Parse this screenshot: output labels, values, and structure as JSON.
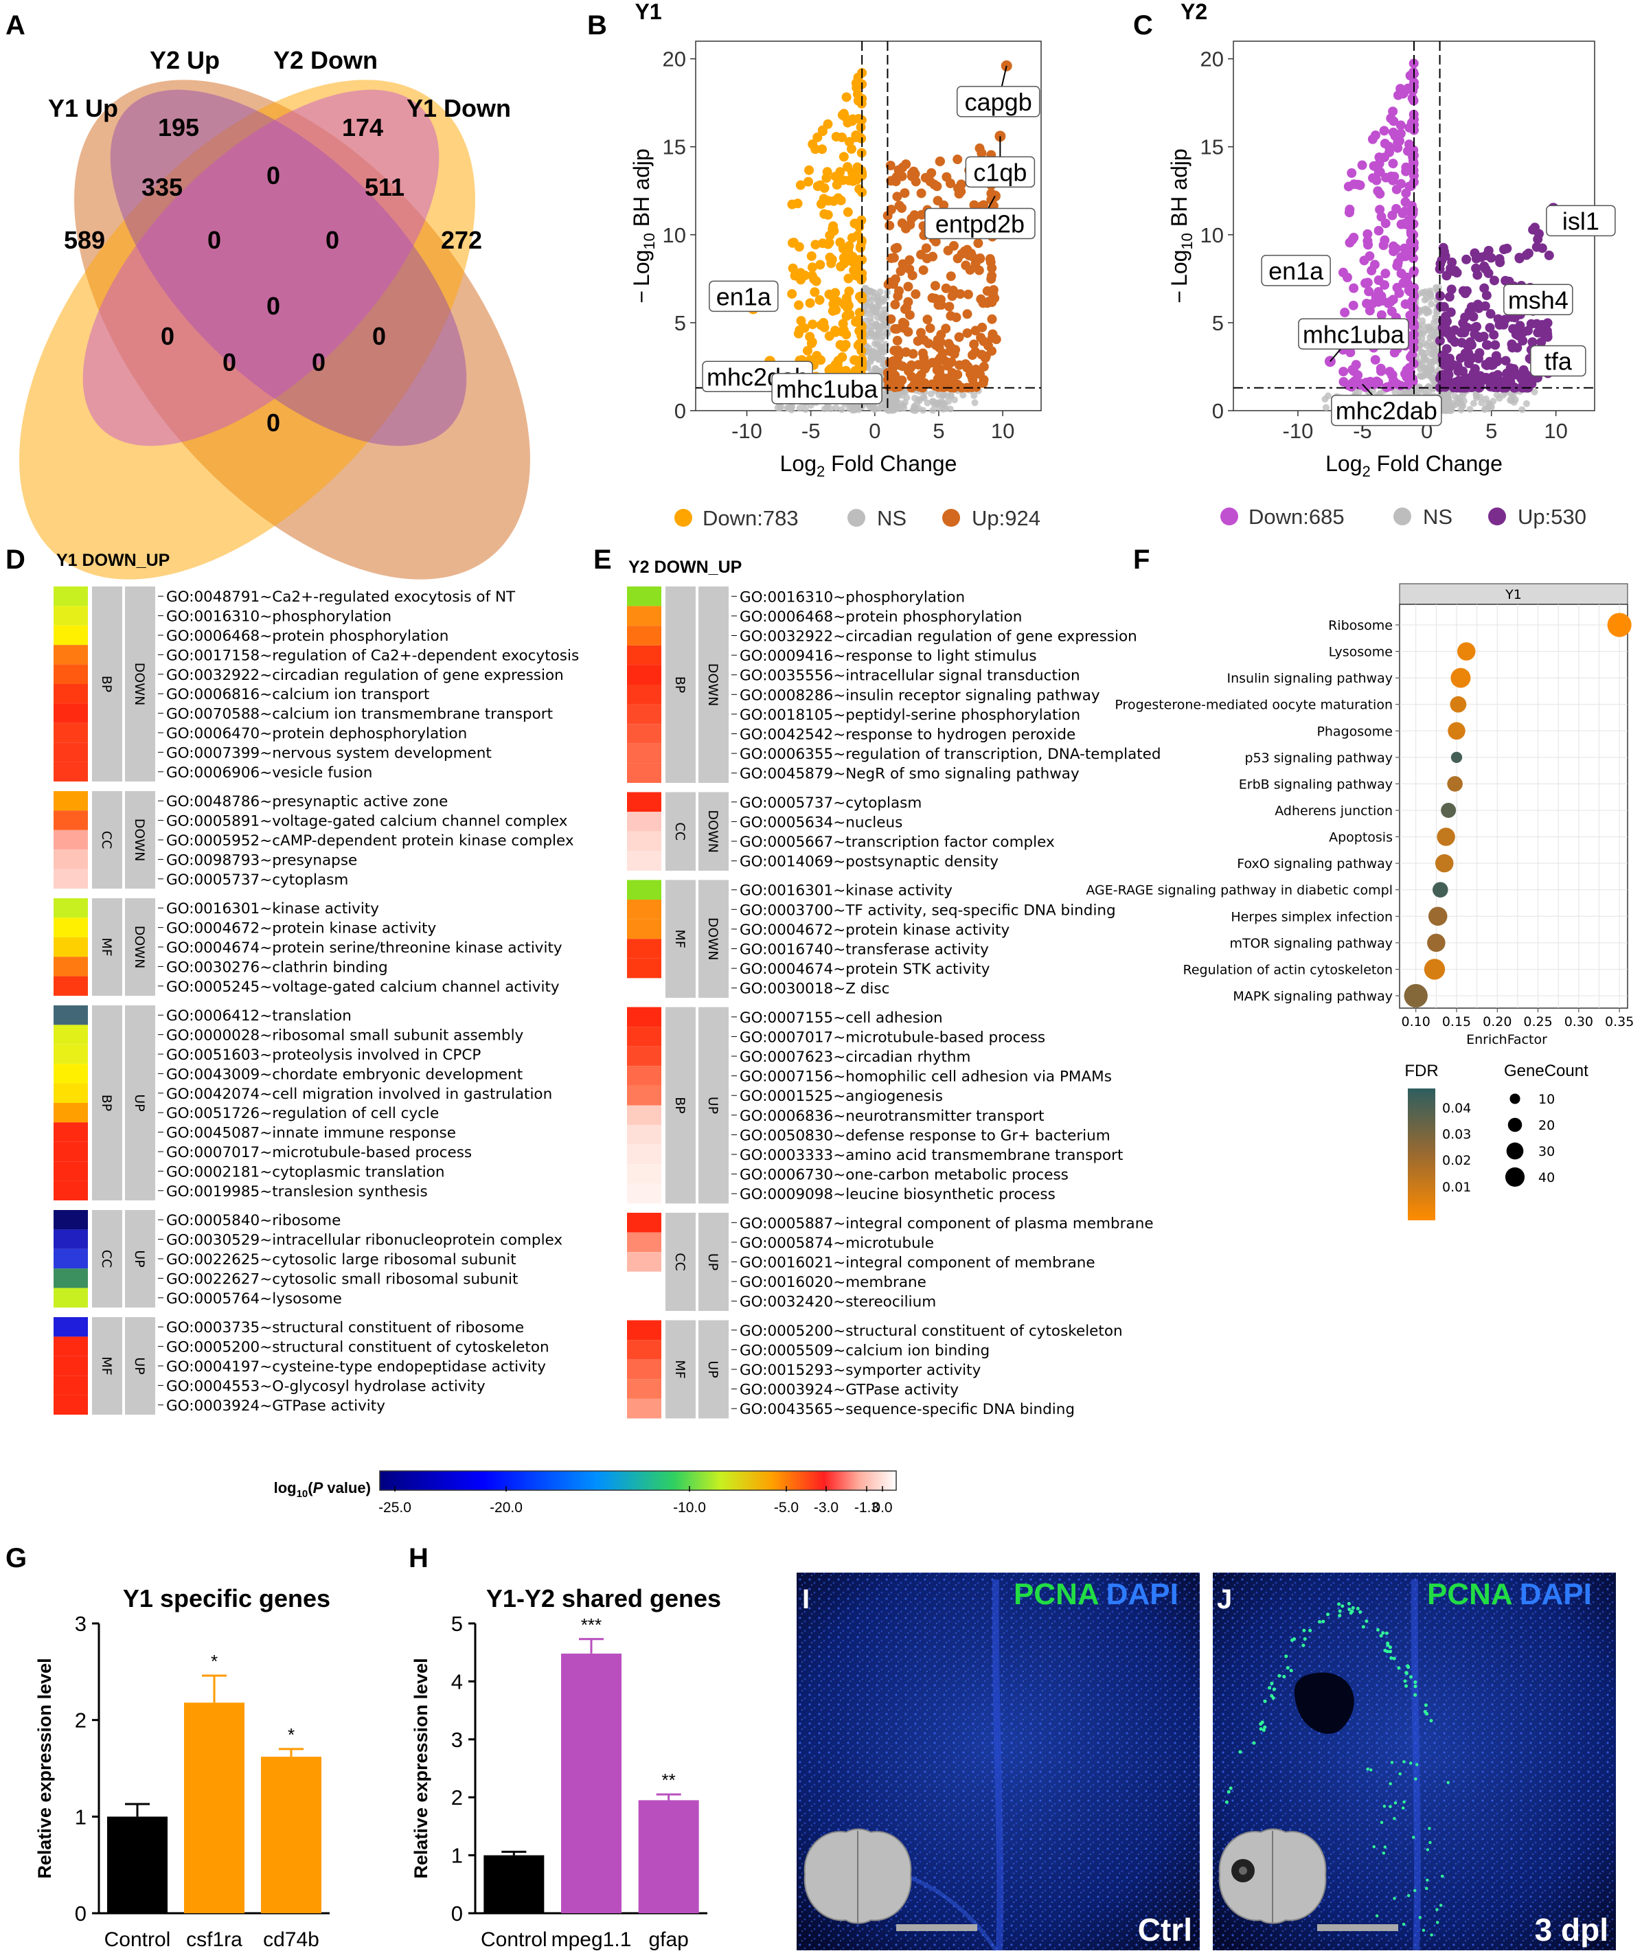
{
  "panels": {
    "A": "A",
    "B": "B",
    "C": "C",
    "D": "D",
    "E": "E",
    "F": "F",
    "G": "G",
    "H": "H",
    "I": "I",
    "J": "J"
  },
  "colors": {
    "y1_up": "#D2691E",
    "y1_down": "#FFA500",
    "y2_up": "#7B2D8E",
    "y2_down": "#C050D0",
    "ns": "#BDBDBD",
    "bar_control": "#000000",
    "bar_y1": "#FF9A00",
    "bar_y2": "#B94FBF"
  },
  "chart_data": [
    {
      "id": "A",
      "type": "venn",
      "sets": [
        "Y1 Up",
        "Y2 Up",
        "Y2 Down",
        "Y1 Down"
      ],
      "counts": {
        "y1up_only": "589",
        "y2up_only": "195",
        "y2down_only": "174",
        "y1down_only": "272",
        "y1up_y2up": "335",
        "y2down_y1down": "511",
        "y2up_y2down": "0",
        "y1up_y2down": "0",
        "y2up_y1down": "0",
        "center": "0",
        "r1": "0",
        "r2": "0",
        "r3": "0",
        "r4": "0",
        "y1up_y1down": "0"
      }
    },
    {
      "id": "B",
      "type": "scatter",
      "title": "Y1",
      "xlabel": "Log2 Fold Change",
      "ylabel": "-Log10 BH adjp",
      "xlim": [
        -14,
        13
      ],
      "ylim": [
        0,
        21
      ],
      "xticks": [
        "-10",
        "-5",
        "0",
        "5",
        "10"
      ],
      "yticks": [
        "0",
        "5",
        "10",
        "15",
        "20"
      ],
      "legend": {
        "down": "Down:783",
        "ns": "NS",
        "up": "Up:924"
      },
      "labeled_genes": [
        {
          "gene": "capgb",
          "x": 10.3,
          "y": 19.6
        },
        {
          "gene": "c1qb",
          "x": 9.8,
          "y": 15.6
        },
        {
          "gene": "entpd2b",
          "x": 9.4,
          "y": 12.2
        },
        {
          "gene": "en1a",
          "x": -9.5,
          "y": 5.8
        },
        {
          "gene": "mhc2dab",
          "x": -8.2,
          "y": 2.8
        },
        {
          "gene": "mhc1uba",
          "x": -7.5,
          "y": 1.8
        }
      ]
    },
    {
      "id": "C",
      "type": "scatter",
      "title": "Y2",
      "xlabel": "Log2 Fold Change",
      "ylabel": "-Log10 BH adjp",
      "xlim": [
        -15,
        13
      ],
      "ylim": [
        0,
        21
      ],
      "xticks": [
        "-10",
        "-5",
        "0",
        "5",
        "10"
      ],
      "yticks": [
        "0",
        "5",
        "10",
        "15",
        "20"
      ],
      "legend": {
        "down": "Down:685",
        "ns": "NS",
        "up": "Up:530"
      },
      "labeled_genes": [
        {
          "gene": "isl1",
          "x": 9.8,
          "y": 11.5
        },
        {
          "gene": "msh4",
          "x": 8.2,
          "y": 6.0
        },
        {
          "gene": "tfa",
          "x": 9.0,
          "y": 3.3
        },
        {
          "gene": "en1a",
          "x": -11.0,
          "y": 7.5
        },
        {
          "gene": "mhc1uba",
          "x": -7.5,
          "y": 2.8
        },
        {
          "gene": "mhc2dab",
          "x": -5.0,
          "y": 1.5
        }
      ]
    },
    {
      "id": "D",
      "type": "heatmap",
      "title": "Y1 DOWN_UP",
      "groups": [
        {
          "cat": "BP",
          "dir": "DOWN",
          "terms": [
            "GO:0048791~Ca2+-regulated exocytosis of NT",
            "GO:0016310~phosphorylation",
            "GO:0006468~protein phosphorylation",
            "GO:0017158~regulation of Ca2+-dependent exocytosis",
            "GO:0032922~circadian regulation of gene expression",
            "GO:0006816~calcium ion transport",
            "GO:0070588~calcium ion transmembrane transport",
            "GO:0006470~protein dephosphorylation",
            "GO:0007399~nervous system development",
            "GO:0006906~vesicle fusion"
          ],
          "colors": [
            "#C8F020",
            "#E6F018",
            "#FFF000",
            "#FF7A10",
            "#FF5A10",
            "#FF3A10",
            "#FF2A10",
            "#FF3E18",
            "#FF3A18",
            "#FF3A18"
          ]
        },
        {
          "cat": "CC",
          "dir": "DOWN",
          "terms": [
            "GO:0048786~presynaptic active zone",
            "GO:0005891~voltage-gated calcium channel complex",
            "GO:0005952~cAMP-dependent protein kinase complex",
            "GO:0098793~presynapse",
            "GO:0005737~cytoplasm"
          ],
          "colors": [
            "#FFA000",
            "#FF6020",
            "#FFA89A",
            "#FFC4B8",
            "#FFD0C8"
          ]
        },
        {
          "cat": "MF",
          "dir": "DOWN",
          "terms": [
            "GO:0016301~kinase activity",
            "GO:0004672~protein kinase activity",
            "GO:0004674~protein serine/threonine kinase activity",
            "GO:0030276~clathrin binding",
            "GO:0005245~voltage-gated calcium channel activity"
          ],
          "colors": [
            "#C8F020",
            "#FFF000",
            "#FFD000",
            "#FF7A10",
            "#FF3A10"
          ]
        },
        {
          "cat": "BP",
          "dir": "UP",
          "terms": [
            "GO:0006412~translation",
            "GO:0000028~ribosomal small subunit assembly",
            "GO:0051603~proteolysis involved in CPCP",
            "GO:0043009~chordate embryonic development",
            "GO:0042074~cell migration involved in gastrulation",
            "GO:0051726~regulation of cell cycle",
            "GO:0045087~innate immune response",
            "GO:0007017~microtubule-based process",
            "GO:0002181~cytoplasmic translation",
            "GO:0019985~translesion synthesis"
          ],
          "colors": [
            "#426878",
            "#E0F018",
            "#E8F018",
            "#FFF000",
            "#FFE000",
            "#FFA000",
            "#FF2A10",
            "#FF2A10",
            "#FF2A10",
            "#FF2A10"
          ]
        },
        {
          "cat": "CC",
          "dir": "UP",
          "terms": [
            "GO:0005840~ribosome",
            "GO:0030529~intracellular ribonucleoprotein complex",
            "GO:0022625~cytosolic large ribosomal subunit",
            "GO:0022627~cytosolic small ribosomal subunit",
            "GO:0005764~lysosome"
          ],
          "colors": [
            "#0A0A70",
            "#2020C0",
            "#2A3ADC",
            "#3C9060",
            "#C8F020"
          ]
        },
        {
          "cat": "MF",
          "dir": "UP",
          "terms": [
            "GO:0003735~structural constituent of ribosome",
            "GO:0005200~structural constituent of cytoskeleton",
            "GO:0004197~cysteine-type endopeptidase activity",
            "GO:0004553~O-glycosyl hydrolase activity",
            "GO:0003924~GTPase activity"
          ],
          "colors": [
            "#1E1EDC",
            "#FF2A10",
            "#FF2A10",
            "#FF2A10",
            "#FF2A10"
          ]
        }
      ]
    },
    {
      "id": "E",
      "type": "heatmap",
      "title": "Y2 DOWN_UP",
      "groups": [
        {
          "cat": "BP",
          "dir": "DOWN",
          "terms": [
            "GO:0016310~phosphorylation",
            "GO:0006468~protein phosphorylation",
            "GO:0032922~circadian regulation of gene expression",
            "GO:0009416~response to light stimulus",
            "GO:0035556~intracellular signal transduction",
            "GO:0008286~insulin receptor signaling pathway",
            "GO:0018105~peptidyl-serine phosphorylation",
            "GO:0042542~response to hydrogen peroxide",
            "GO:0006355~regulation of transcription, DNA-templated",
            "GO:0045879~NegR of smo signaling pathway"
          ],
          "colors": [
            "#8CE020",
            "#FF8C10",
            "#FF7010",
            "#FF3A10",
            "#FF2A10",
            "#FF3A18",
            "#FF4A28",
            "#FF5A38",
            "#FF6A48",
            "#FF6A48"
          ]
        },
        {
          "cat": "CC",
          "dir": "DOWN",
          "terms": [
            "GO:0005737~cytoplasm",
            "GO:0005634~nucleus",
            "GO:0005667~transcription factor complex",
            "GO:0014069~postsynaptic density"
          ],
          "colors": [
            "#FF2A10",
            "#FFC8C0",
            "#FFD8D0",
            "#FFE2DC"
          ]
        },
        {
          "cat": "MF",
          "dir": "DOWN",
          "terms": [
            "GO:0016301~kinase activity",
            "GO:0003700~TF activity, seq-specific DNA binding",
            "GO:0004672~protein kinase activity",
            "GO:0016740~transferase activity",
            "GO:0004674~protein STK activity",
            "GO:0030018~Z disc"
          ],
          "colors": [
            "#8CE020",
            "#FF8C10",
            "#FF8C10",
            "#FF3A10",
            "#FF3A10",
            "#FFFFFF"
          ]
        },
        {
          "cat": "BP",
          "dir": "UP",
          "terms": [
            "GO:0007155~cell adhesion",
            "GO:0007017~microtubule-based process",
            "GO:0007623~circadian rhythm",
            "GO:0007156~homophilic cell adhesion via PMAMs",
            "GO:0001525~angiogenesis",
            "GO:0006836~neurotransmitter transport",
            "GO:0050830~defense response to Gr+ bacterium",
            "GO:0003333~amino acid transmembrane transport",
            "GO:0006730~one-carbon metabolic process",
            "GO:0009098~leucine biosynthetic process"
          ],
          "colors": [
            "#FF2A10",
            "#FF3A18",
            "#FF4A28",
            "#FF6A48",
            "#FF7A58",
            "#FFCCC0",
            "#FFE0D8",
            "#FFE8E2",
            "#FFEEE8",
            "#FFF2EE"
          ]
        },
        {
          "cat": "CC",
          "dir": "UP",
          "terms": [
            "GO:0005887~integral component of plasma membrane",
            "GO:0005874~microtubule",
            "GO:0016021~integral component of membrane",
            "GO:0016020~membrane",
            "GO:0032420~stereocilium"
          ],
          "colors": [
            "#FF2A10",
            "#FF8A70",
            "#FFB8A8",
            "#FFFFFF",
            "#FFFFFF"
          ]
        },
        {
          "cat": "MF",
          "dir": "UP",
          "terms": [
            "GO:0005200~structural constituent of cytoskeleton",
            "GO:0005509~calcium ion binding",
            "GO:0015293~symporter activity",
            "GO:0003924~GTPase activity",
            "GO:0043565~sequence-specific DNA binding"
          ],
          "colors": [
            "#FF2A10",
            "#FF4A28",
            "#FF6A48",
            "#FF7A58",
            "#FF9A80"
          ]
        }
      ],
      "colorbar": {
        "label": "log10(P value)",
        "ticks": [
          "-25.0",
          "-20.0",
          "-10.0",
          "-5.0",
          "-3.0",
          "-1.3",
          "0.0"
        ]
      }
    },
    {
      "id": "F",
      "type": "scatter",
      "facet": "Y1",
      "xlabel": "EnrichFactor",
      "xlim": [
        0.08,
        0.36
      ],
      "xticks": [
        "0.10",
        "0.15",
        "0.20",
        "0.25",
        "0.30",
        "0.35"
      ],
      "pathways": [
        {
          "name": "Ribosome",
          "x": 0.35,
          "count": 40,
          "fdr": 0.0
        },
        {
          "name": "Lysosome",
          "x": 0.162,
          "count": 20,
          "fdr": 0.005
        },
        {
          "name": "Insulin signaling pathway",
          "x": 0.155,
          "count": 25,
          "fdr": 0.005
        },
        {
          "name": "Progesterone-mediated oocyte maturation",
          "x": 0.152,
          "count": 15,
          "fdr": 0.01
        },
        {
          "name": "Phagosome",
          "x": 0.15,
          "count": 18,
          "fdr": 0.01
        },
        {
          "name": "p53 signaling pathway",
          "x": 0.15,
          "count": 5,
          "fdr": 0.045
        },
        {
          "name": "ErbB signaling pathway",
          "x": 0.148,
          "count": 13,
          "fdr": 0.02
        },
        {
          "name": "Adherens junction",
          "x": 0.14,
          "count": 12,
          "fdr": 0.04
        },
        {
          "name": "Apoptosis",
          "x": 0.137,
          "count": 20,
          "fdr": 0.015
        },
        {
          "name": "FoxO signaling pathway",
          "x": 0.135,
          "count": 20,
          "fdr": 0.015
        },
        {
          "name": "AGE-RAGE signaling pathway in diabetic compl",
          "x": 0.13,
          "count": 13,
          "fdr": 0.045
        },
        {
          "name": "Herpes simplex infection",
          "x": 0.127,
          "count": 22,
          "fdr": 0.025
        },
        {
          "name": "mTOR signaling pathway",
          "x": 0.125,
          "count": 20,
          "fdr": 0.025
        },
        {
          "name": "Regulation of actin cytoskeleton",
          "x": 0.123,
          "count": 28,
          "fdr": 0.01
        },
        {
          "name": "MAPK signaling pathway",
          "x": 0.1,
          "count": 38,
          "fdr": 0.03
        }
      ],
      "fdr_legend": {
        "title": "FDR",
        "ticks": [
          "0.04",
          "0.03",
          "0.02",
          "0.01"
        ]
      },
      "count_legend": {
        "title": "GeneCount",
        "ticks": [
          "10",
          "20",
          "30",
          "40"
        ]
      }
    },
    {
      "id": "G",
      "type": "bar",
      "title": "Y1 specific genes",
      "ylabel": "Relative expression level",
      "categories": [
        "Control",
        "csf1ra",
        "cd74b"
      ],
      "values": [
        1.0,
        2.18,
        1.62
      ],
      "errors": [
        0.13,
        0.28,
        0.08
      ],
      "significance": [
        "",
        "*",
        "*"
      ],
      "ylim": [
        0,
        3
      ],
      "yticks": [
        "0",
        "1",
        "2",
        "3"
      ]
    },
    {
      "id": "H",
      "type": "bar",
      "title": "Y1-Y2 shared genes",
      "ylabel": "Relative expression level",
      "categories": [
        "Control",
        "mpeg1.1",
        "gfap"
      ],
      "values": [
        1.0,
        4.48,
        1.95
      ],
      "errors": [
        0.06,
        0.25,
        0.1
      ],
      "significance": [
        "",
        "***",
        "**"
      ],
      "ylim": [
        0,
        5
      ],
      "yticks": [
        "0",
        "1",
        "2",
        "3",
        "4",
        "5"
      ]
    }
  ],
  "venn_labels": {
    "y1up": "Y1 Up",
    "y2up": "Y2 Up",
    "y2down": "Y2 Down",
    "y1down": "Y1 Down"
  },
  "volcano_text": {
    "B_title": "Y1",
    "C_title": "Y2",
    "ylab_log": "Log",
    "ylab_sub": "10",
    "ylab_rest": " BH adjp",
    "ylab_minus": "−",
    "xlab_log": "Log",
    "xlab_sub": "2",
    "xlab_rest": " Fold Change"
  },
  "heat_titles": {
    "D": "Y1 DOWN_UP",
    "E": "Y2 DOWN_UP"
  },
  "colorbar_label_a": "log",
  "colorbar_label_sub": "10",
  "colorbar_label_b": "(",
  "colorbar_label_p": "P",
  "colorbar_label_c": " value)",
  "f_text": {
    "facet": "Y1",
    "xlabel": "EnrichFactor",
    "fdr_title": "FDR",
    "count_title": "GeneCount"
  },
  "micro": {
    "I_stain_a": "PCNA",
    "I_stain_b": "DAPI",
    "I_cond": "Ctrl",
    "J_stain_a": "PCNA",
    "J_stain_b": "DAPI",
    "J_cond": "3 dpl"
  }
}
